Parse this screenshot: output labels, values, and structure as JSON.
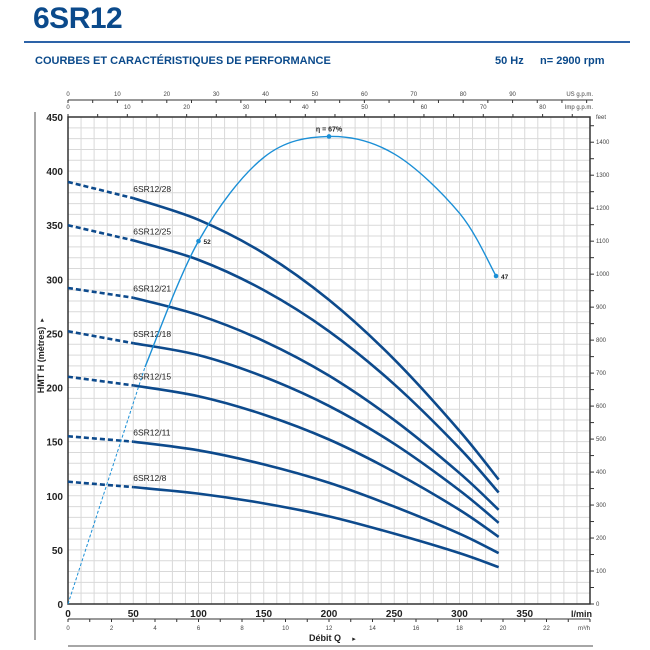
{
  "header": {
    "title": "6SR12",
    "subtitle": "COURBES ET CARACTÉRISTIQUES DE PERFORMANCE",
    "frequency": "50 Hz",
    "speed": "n= 2900 rpm"
  },
  "colors": {
    "title": "#0b4a8b",
    "curve": "#0d4a8c",
    "efficiency": "#1b8fd6",
    "grid": "#d9d9d9"
  },
  "chart_data": {
    "type": "line",
    "xlabel": "Débit Q",
    "ylabel": "HMT H (mètres)",
    "x_unit": "l/min",
    "xlim": [
      0,
      400
    ],
    "ylim": [
      0,
      450
    ],
    "grid": true,
    "x_ticks": [
      0,
      50,
      100,
      150,
      200,
      250,
      300,
      350
    ],
    "y_ticks": [
      0,
      50,
      100,
      150,
      200,
      250,
      300,
      350,
      400,
      450
    ],
    "secondary_axes": {
      "us_gpm": {
        "label": "US g.p.m.",
        "ticks": [
          0,
          10,
          20,
          30,
          40,
          50,
          60,
          70,
          80,
          90
        ]
      },
      "imp_gpm": {
        "label": "Imp g.p.m.",
        "ticks": [
          0,
          10,
          20,
          30,
          40,
          50,
          60,
          70,
          80
        ]
      },
      "m3h": {
        "label": "m³/h",
        "ticks": [
          0,
          2,
          4,
          6,
          8,
          10,
          12,
          14,
          16,
          18,
          20,
          22
        ]
      },
      "feet": {
        "label": "feet",
        "ticks": [
          0,
          100,
          200,
          300,
          400,
          500,
          600,
          700,
          800,
          900,
          1000,
          1100,
          1200,
          1300,
          1400
        ]
      }
    },
    "dashed_until": 50,
    "x": [
      0,
      50,
      100,
      150,
      200,
      250,
      300,
      330
    ],
    "series": [
      {
        "name": "6SR12/28",
        "values": [
          390,
          375,
          355,
          324,
          281,
          226,
          160,
          115
        ]
      },
      {
        "name": "6SR12/25",
        "values": [
          350,
          336,
          318,
          290,
          252,
          203,
          144,
          103
        ]
      },
      {
        "name": "6SR12/21",
        "values": [
          292,
          283,
          267,
          243,
          211,
          170,
          121,
          87
        ]
      },
      {
        "name": "6SR12/18",
        "values": [
          252,
          241,
          230,
          210,
          183,
          148,
          105,
          75
        ]
      },
      {
        "name": "6SR12/15",
        "values": [
          210,
          202,
          192,
          175,
          152,
          122,
          87,
          62
        ]
      },
      {
        "name": "6SR12/11",
        "values": [
          155,
          150,
          142,
          129,
          112,
          90,
          65,
          47
        ]
      },
      {
        "name": "6SR12/8",
        "values": [
          113,
          108,
          102,
          93,
          81,
          65,
          47,
          34
        ]
      }
    ],
    "efficiency": {
      "name": "η",
      "unit": "%",
      "scale_max": 70,
      "dashed_until": 59,
      "x": [
        0,
        50,
        100,
        150,
        200,
        250,
        300,
        328
      ],
      "values": [
        0,
        30,
        52,
        64,
        67,
        64.5,
        56,
        47
      ],
      "annotations": [
        {
          "x": 100,
          "label": "52"
        },
        {
          "x": 200,
          "label": "η = 67%"
        },
        {
          "x": 328,
          "label": "47"
        }
      ]
    }
  }
}
